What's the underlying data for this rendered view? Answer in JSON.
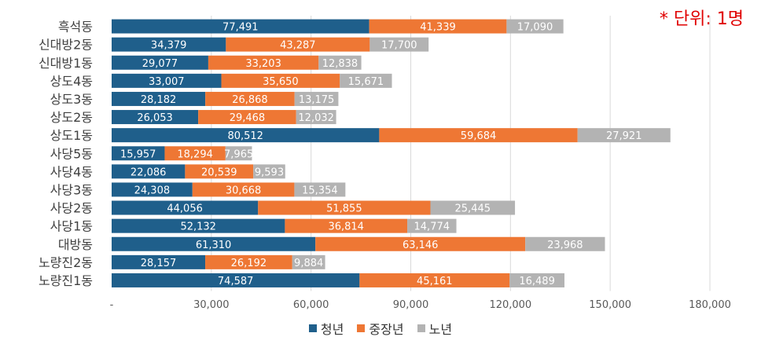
{
  "note": "* 단위: 1명",
  "colors": {
    "youth": "#1f5f8b",
    "middle": "#ee7734",
    "senior": "#b3b3b3"
  },
  "chart_data": {
    "type": "bar",
    "orientation": "horizontal",
    "stacked": true,
    "categories": [
      "흑석동",
      "신대방2동",
      "신대방1동",
      "상도4동",
      "상도3동",
      "상도2동",
      "상도1동",
      "사당5동",
      "사당4동",
      "사당3동",
      "사당2동",
      "사당1동",
      "대방동",
      "노량진2동",
      "노량진1동"
    ],
    "series": [
      {
        "name": "청년",
        "color": "#1f5f8b",
        "values": [
          77491,
          34379,
          29077,
          33007,
          28182,
          26053,
          80512,
          15957,
          22086,
          24308,
          44056,
          52132,
          61310,
          28157,
          74587
        ],
        "labels": [
          "77,491",
          "34,379",
          "29,077",
          "33,007",
          "28,182",
          "26,053",
          "80,512",
          "15,957",
          "22,086",
          "24,308",
          "44,056",
          "52,132",
          "61,310",
          "28,157",
          "74,587"
        ]
      },
      {
        "name": "중장년",
        "color": "#ee7734",
        "values": [
          41339,
          43287,
          33203,
          35650,
          26868,
          29468,
          59684,
          18294,
          20539,
          30668,
          51855,
          36814,
          63146,
          26192,
          45161
        ],
        "labels": [
          "41,339",
          "43,287",
          "33,203",
          "35,650",
          "26,868",
          "29,468",
          "59,684",
          "18,294",
          "20,539",
          "30,668",
          "51,855",
          "36,814",
          "63,146",
          "26,192",
          "45,161"
        ]
      },
      {
        "name": "노년",
        "color": "#b3b3b3",
        "values": [
          17090,
          17700,
          12838,
          15671,
          13175,
          12032,
          27921,
          7965,
          9593,
          15354,
          25445,
          14774,
          23968,
          9884,
          16489
        ],
        "labels": [
          "17,090",
          "17,700",
          "12,838",
          "15,671",
          "13,175",
          "12,032",
          "27,921",
          "7,965",
          "9,593",
          "15,354",
          "25,445",
          "14,774",
          "23,968",
          "9,884",
          "16,489"
        ]
      }
    ],
    "xlim": [
      0,
      180000
    ],
    "xticks": [
      0,
      30000,
      60000,
      90000,
      120000,
      150000,
      180000
    ],
    "xtick_labels": [
      "-",
      "30,000",
      "60,000",
      "90,000",
      "120,000",
      "150,000",
      "180,000"
    ],
    "grid": true,
    "legend_position": "bottom"
  }
}
